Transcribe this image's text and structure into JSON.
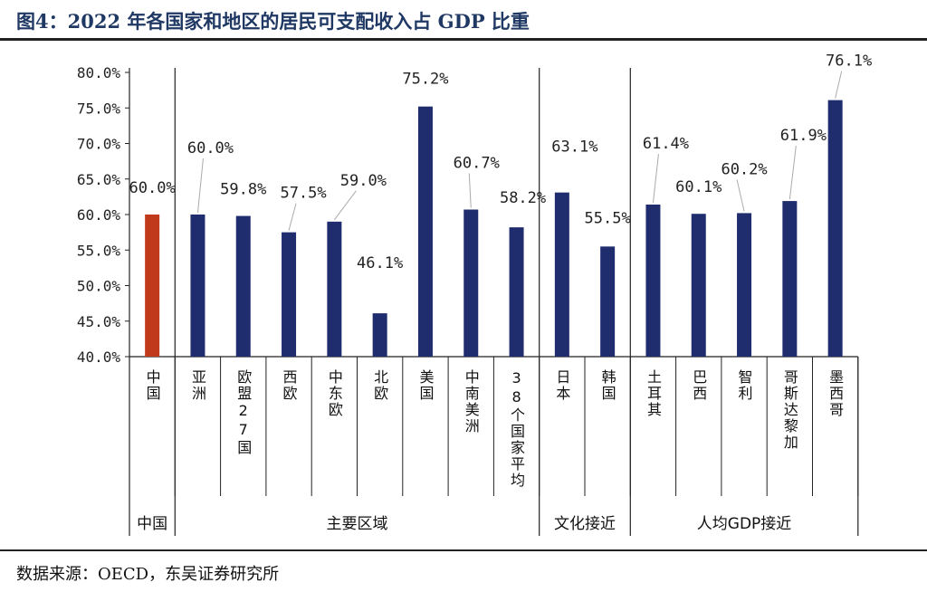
{
  "title": "图4：2022 年各国家和地区的居民可支配收入占 GDP 比重",
  "source": "数据来源：OECD，东吴证券研究所",
  "colors": {
    "china": "#c0391b",
    "other": "#1f2d6e"
  },
  "chart_data": {
    "type": "bar",
    "title": "2022 年各国家和地区的居民可支配收入占 GDP 比重",
    "ylim": [
      40,
      80
    ],
    "yticks": [
      "40.0%",
      "45.0%",
      "50.0%",
      "55.0%",
      "60.0%",
      "65.0%",
      "70.0%",
      "75.0%",
      "80.0%"
    ],
    "categories": [
      "中国",
      "亚洲",
      "欧盟27国",
      "西欧",
      "中东欧",
      "北欧",
      "美国",
      "中南美洲",
      "38个国家平均",
      "日本",
      "韩国",
      "土耳其",
      "巴西",
      "智利",
      "哥斯达黎加",
      "墨西哥"
    ],
    "values": [
      60.0,
      60.0,
      59.8,
      57.5,
      59.0,
      46.1,
      75.2,
      60.7,
      58.2,
      63.1,
      55.5,
      61.4,
      60.1,
      60.2,
      61.9,
      76.1
    ],
    "labels": [
      "60.0%",
      "60.0%",
      "59.8%",
      "57.5%",
      "59.0%",
      "46.1%",
      "75.2%",
      "60.7%",
      "58.2%",
      "63.1%",
      "55.5%",
      "61.4%",
      "60.1%",
      "60.2%",
      "61.9%",
      "76.1%"
    ],
    "groups": [
      {
        "name": "中国",
        "count": 1
      },
      {
        "name": "主要区域",
        "count": 8
      },
      {
        "name": "文化接近",
        "count": 2
      },
      {
        "name": "人均GDP接近",
        "count": 5
      }
    ]
  }
}
